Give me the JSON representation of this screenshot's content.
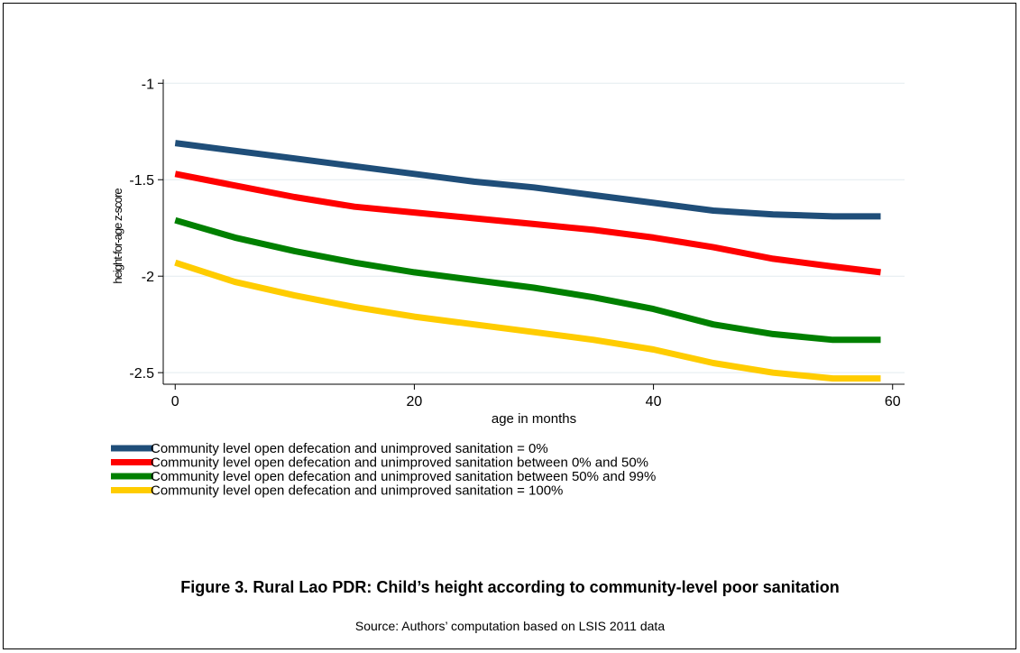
{
  "figure": {
    "title": "Figure 3. Rural Lao PDR: Child’s height according to community-level poor sanitation",
    "source": "Source: Authors’ computation based on LSIS 2011 data"
  },
  "chart_data": {
    "type": "line",
    "xlabel": "age in months",
    "ylabel": "height-for-age z-score",
    "xlim": [
      -1,
      61
    ],
    "ylim": [
      -2.56,
      -0.98
    ],
    "xticks": [
      0,
      20,
      40,
      60
    ],
    "yticks": [
      -1,
      -1.5,
      -2,
      -2.5
    ],
    "xtick_labels": [
      "0",
      "20",
      "40",
      "60"
    ],
    "ytick_labels": [
      "-1",
      "-1.5",
      "-2",
      "-2.5"
    ],
    "grid": true,
    "legend_position": "bottom",
    "series": [
      {
        "name": "Community level open defecation and unimproved sanitation = 0%",
        "color": "#1f4e79",
        "x": [
          0,
          5,
          10,
          15,
          20,
          25,
          30,
          35,
          40,
          45,
          50,
          55,
          59
        ],
        "y": [
          -1.31,
          -1.35,
          -1.39,
          -1.43,
          -1.47,
          -1.51,
          -1.54,
          -1.58,
          -1.62,
          -1.66,
          -1.68,
          -1.69,
          -1.69
        ]
      },
      {
        "name": "Community level open defecation and unimproved sanitation between 0% and 50%",
        "color": "#ff0000",
        "x": [
          0,
          5,
          10,
          15,
          20,
          25,
          30,
          35,
          40,
          45,
          50,
          55,
          59
        ],
        "y": [
          -1.47,
          -1.53,
          -1.59,
          -1.64,
          -1.67,
          -1.7,
          -1.73,
          -1.76,
          -1.8,
          -1.85,
          -1.91,
          -1.95,
          -1.98
        ]
      },
      {
        "name": "Community level open defecation and unimproved sanitation between 50% and 99%",
        "color": "#008000",
        "x": [
          0,
          5,
          10,
          15,
          20,
          25,
          30,
          35,
          40,
          45,
          50,
          55,
          59
        ],
        "y": [
          -1.71,
          -1.8,
          -1.87,
          -1.93,
          -1.98,
          -2.02,
          -2.06,
          -2.11,
          -2.17,
          -2.25,
          -2.3,
          -2.33,
          -2.33
        ]
      },
      {
        "name": "Community level open defecation and unimproved sanitation = 100%",
        "color": "#ffcc00",
        "x": [
          0,
          5,
          10,
          15,
          20,
          25,
          30,
          35,
          40,
          45,
          50,
          55,
          59
        ],
        "y": [
          -1.93,
          -2.03,
          -2.1,
          -2.16,
          -2.21,
          -2.25,
          -2.29,
          -2.33,
          -2.38,
          -2.45,
          -2.5,
          -2.53,
          -2.53
        ]
      }
    ]
  }
}
